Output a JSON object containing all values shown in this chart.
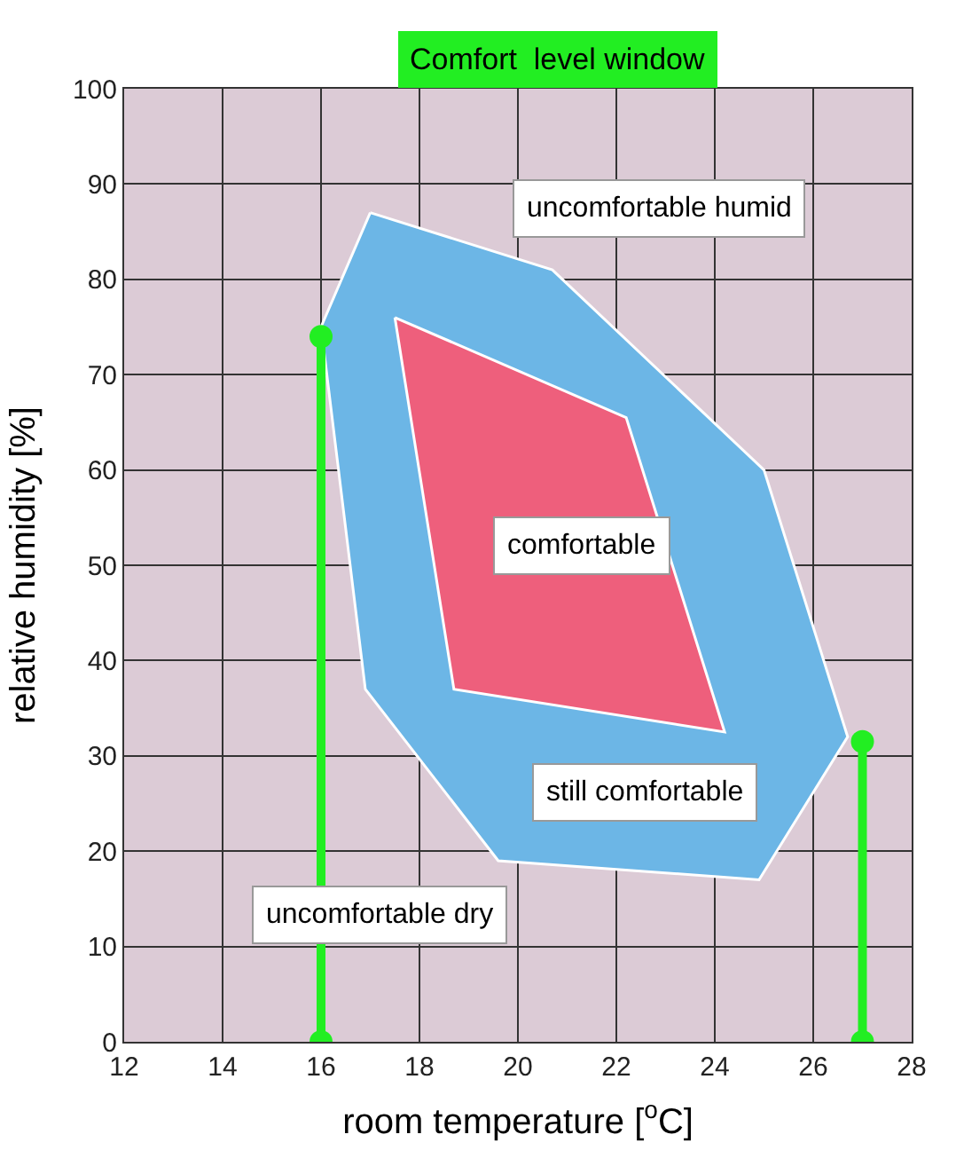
{
  "chart_data": {
    "type": "area",
    "title": "Comfort  level window",
    "xlabel": "room temperature [$^{o}$C]",
    "ylabel": "relative humidity [%]",
    "xlim": [
      12,
      28
    ],
    "xticks": [
      12,
      14,
      16,
      18,
      20,
      22,
      24,
      26,
      28
    ],
    "ylim": [
      0,
      100
    ],
    "yticks": [
      0,
      10,
      20,
      30,
      40,
      50,
      60,
      70,
      80,
      90,
      100
    ],
    "grid": true,
    "series": [
      {
        "color": "#6cb6e6",
        "x": [
          17,
          20.7,
          25,
          26.7,
          24.9,
          19.6,
          16.9,
          16,
          17
        ],
        "values": [
          87,
          81,
          60,
          32,
          17,
          19,
          37,
          75,
          87
        ]
      },
      {
        "color": "#ee5f7c",
        "x": [
          17.5,
          22.2,
          24.2,
          18.7,
          17.5
        ],
        "values": [
          76,
          65.5,
          32.5,
          37,
          76
        ]
      },
      {
        "type": "line",
        "color": "#22ee22",
        "marker": "circle",
        "x": [
          16,
          16
        ],
        "values": [
          0,
          74
        ]
      },
      {
        "type": "line",
        "color": "#22ee22",
        "marker": "circle",
        "x": [
          27,
          27
        ],
        "values": [
          0,
          31.5
        ]
      }
    ],
    "annotations": [
      "uncomfortable humid",
      "comfortable",
      "still comfortable",
      "uncomfortable dry"
    ]
  }
}
